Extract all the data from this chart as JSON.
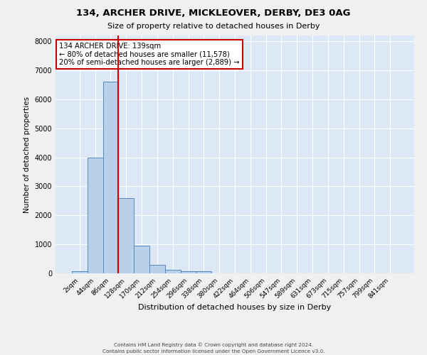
{
  "title": "134, ARCHER DRIVE, MICKLEOVER, DERBY, DE3 0AG",
  "subtitle": "Size of property relative to detached houses in Derby",
  "xlabel": "Distribution of detached houses by size in Derby",
  "ylabel": "Number of detached properties",
  "bar_color": "#b8d0ea",
  "bar_edge_color": "#5588bb",
  "bin_labels": [
    "2sqm",
    "44sqm",
    "86sqm",
    "128sqm",
    "170sqm",
    "212sqm",
    "254sqm",
    "296sqm",
    "338sqm",
    "380sqm",
    "422sqm",
    "464sqm",
    "506sqm",
    "547sqm",
    "589sqm",
    "631sqm",
    "673sqm",
    "715sqm",
    "757sqm",
    "799sqm",
    "841sqm"
  ],
  "bar_heights": [
    75,
    4000,
    6600,
    2600,
    950,
    300,
    120,
    75,
    75,
    0,
    0,
    0,
    0,
    0,
    0,
    0,
    0,
    0,
    0,
    0,
    0
  ],
  "vline_bin_edge": 2.5,
  "vline_color": "#cc0000",
  "annotation_text": "134 ARCHER DRIVE: 139sqm\n← 80% of detached houses are smaller (11,578)\n20% of semi-detached houses are larger (2,889) →",
  "annotation_box_facecolor": "#ffffff",
  "annotation_box_edgecolor": "#cc0000",
  "ylim": [
    0,
    8200
  ],
  "yticks": [
    0,
    1000,
    2000,
    3000,
    4000,
    5000,
    6000,
    7000,
    8000
  ],
  "plot_bg_color": "#dce8f5",
  "fig_bg_color": "#f0f0f0",
  "grid_color": "#ffffff",
  "footer_line1": "Contains HM Land Registry data © Crown copyright and database right 2024.",
  "footer_line2": "Contains public sector information licensed under the Open Government Licence v3.0."
}
